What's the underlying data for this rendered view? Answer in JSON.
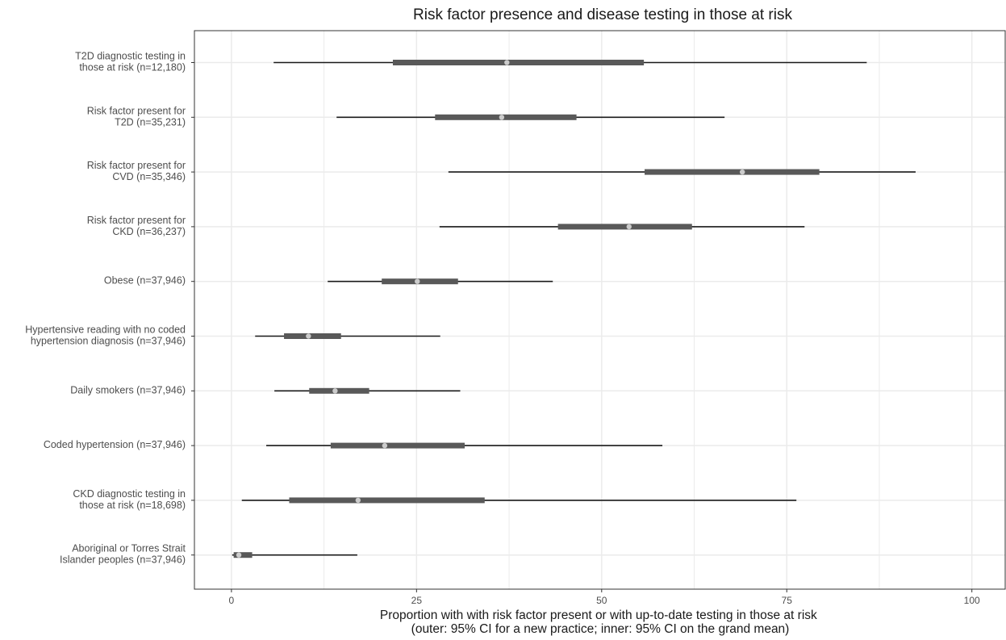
{
  "chart_data": {
    "type": "forest",
    "title": "Risk factor presence and disease testing in those at risk",
    "xlabel": [
      "Proportion with with risk factor present or with up-to-date testing in those at risk",
      "(outer: 95% CI for a new practice; inner: 95% CI on the grand mean)"
    ],
    "ylabel": "",
    "xlim": [
      -5,
      104.5
    ],
    "xticks": [
      0,
      25,
      50,
      75,
      100
    ],
    "grid": true,
    "legend": "none",
    "colors": {
      "outer_line": "#1a1a1a",
      "inner_bar": "#595959",
      "point": "#cccccc",
      "grid": "#ebebeb",
      "panel_border": "#333333"
    },
    "rows": [
      {
        "label": [
          "T2D diagnostic testing in",
          "those at risk (n=12,180)"
        ],
        "estimate": 37.2,
        "outer": [
          5.7,
          85.8
        ],
        "inner": [
          21.8,
          55.7
        ]
      },
      {
        "label": [
          "Risk factor present for",
          "T2D (n=35,231)"
        ],
        "estimate": 36.5,
        "outer": [
          14.2,
          66.6
        ],
        "inner": [
          27.5,
          46.6
        ]
      },
      {
        "label": [
          "Risk factor present for",
          "CVD (n=35,346)"
        ],
        "estimate": 69.0,
        "outer": [
          29.3,
          92.4
        ],
        "inner": [
          55.8,
          79.4
        ]
      },
      {
        "label": [
          "Risk factor present for",
          "CKD (n=36,237)"
        ],
        "estimate": 53.7,
        "outer": [
          28.1,
          77.4
        ],
        "inner": [
          44.1,
          62.2
        ]
      },
      {
        "label": [
          "Obese (n=37,946)"
        ],
        "estimate": 25.1,
        "outer": [
          13.0,
          43.4
        ],
        "inner": [
          20.3,
          30.6
        ]
      },
      {
        "label": [
          "Hypertensive reading with no coded",
          "hypertension diagnosis (n=37,946)"
        ],
        "estimate": 10.4,
        "outer": [
          3.2,
          28.2
        ],
        "inner": [
          7.1,
          14.8
        ]
      },
      {
        "label": [
          "Daily smokers (n=37,946)"
        ],
        "estimate": 14.0,
        "outer": [
          5.8,
          30.9
        ],
        "inner": [
          10.5,
          18.6
        ]
      },
      {
        "label": [
          "Coded hypertension (n=37,946)"
        ],
        "estimate": 20.7,
        "outer": [
          4.7,
          58.2
        ],
        "inner": [
          13.4,
          31.5
        ]
      },
      {
        "label": [
          "CKD diagnostic testing in",
          "those at risk (n=18,698)"
        ],
        "estimate": 17.1,
        "outer": [
          1.4,
          76.3
        ],
        "inner": [
          7.8,
          34.2
        ]
      },
      {
        "label": [
          "Aboriginal or Torres Strait",
          "Islander peoples (n=37,946)"
        ],
        "estimate": 1.0,
        "outer": [
          0.1,
          17.0
        ],
        "inner": [
          0.3,
          2.8
        ]
      }
    ]
  }
}
